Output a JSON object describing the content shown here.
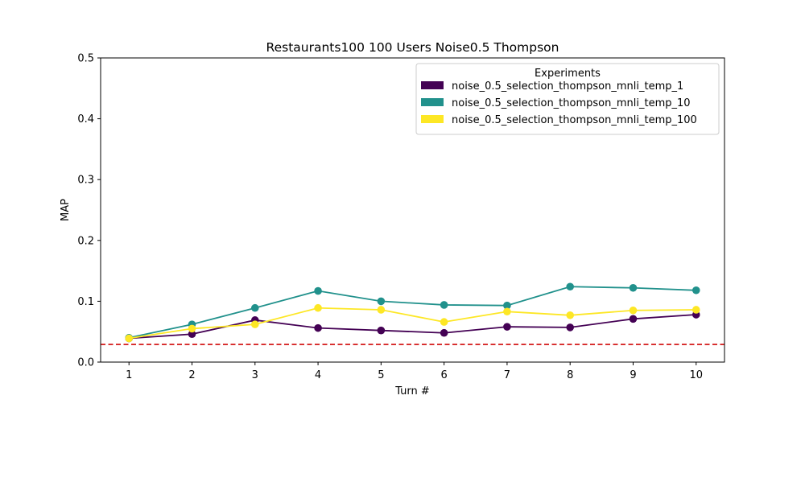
{
  "chart_data": {
    "type": "line",
    "title": "Restaurants100 100 Users Noise0.5 Thompson",
    "xlabel": "Turn #",
    "ylabel": "MAP",
    "x": [
      1,
      2,
      3,
      4,
      5,
      6,
      7,
      8,
      9,
      10
    ],
    "x_ticks": [
      "1",
      "2",
      "3",
      "4",
      "5",
      "6",
      "7",
      "8",
      "9",
      "10"
    ],
    "xlim": [
      0.55,
      10.45
    ],
    "ylim": [
      0.0,
      0.5
    ],
    "y_ticks": [
      "0.0",
      "0.1",
      "0.2",
      "0.3",
      "0.4",
      "0.5"
    ],
    "grid": false,
    "legend": {
      "title": "Experiments",
      "placement": "upper right"
    },
    "series": [
      {
        "name": "noise_0.5_selection_thompson_mnli_temp_1",
        "color": "#440154",
        "values": [
          0.039,
          0.046,
          0.069,
          0.056,
          0.052,
          0.048,
          0.058,
          0.057,
          0.071,
          0.078
        ]
      },
      {
        "name": "noise_0.5_selection_thompson_mnli_temp_10",
        "color": "#21918c",
        "values": [
          0.04,
          0.062,
          0.089,
          0.117,
          0.1,
          0.094,
          0.093,
          0.124,
          0.122,
          0.118
        ]
      },
      {
        "name": "noise_0.5_selection_thompson_mnli_temp_100",
        "color": "#fde725",
        "values": [
          0.039,
          0.055,
          0.062,
          0.089,
          0.086,
          0.066,
          0.083,
          0.077,
          0.085,
          0.086
        ]
      }
    ],
    "reference_line": {
      "y": 0.029,
      "color": "#d62728",
      "style": "dashed"
    }
  }
}
